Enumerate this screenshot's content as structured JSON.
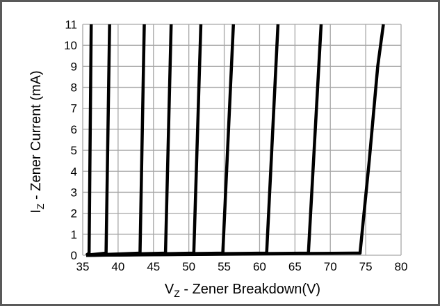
{
  "chart_data": {
    "type": "line",
    "xlabel": {
      "main": "V",
      "sub": "Z",
      "rest": " - Zener Breakdown(V)"
    },
    "ylabel": {
      "main": "I",
      "sub": "Z",
      "rest": " - Zener Current (mA)"
    },
    "xlim": [
      35,
      80
    ],
    "ylim": [
      0,
      11
    ],
    "xticks": [
      35,
      40,
      45,
      50,
      55,
      60,
      65,
      70,
      75,
      80
    ],
    "yticks": [
      0,
      1,
      2,
      3,
      4,
      5,
      6,
      7,
      8,
      9,
      10,
      11
    ],
    "grid": true,
    "legend": "none",
    "colors": {
      "line": "#000000",
      "grid": "#a6a6a6",
      "frame": "#595959"
    },
    "series": [
      {
        "x": [
          35.5,
          35.9,
          36.2
        ],
        "y": [
          0,
          0.1,
          11
        ]
      },
      {
        "x": [
          35.5,
          38.3,
          38.8
        ],
        "y": [
          0,
          0.1,
          11
        ]
      },
      {
        "x": [
          35.5,
          43.1,
          43.7
        ],
        "y": [
          0,
          0.1,
          11
        ]
      },
      {
        "x": [
          35.5,
          46.7,
          47.5
        ],
        "y": [
          0,
          0.1,
          11
        ]
      },
      {
        "x": [
          35.5,
          50.7,
          51.7
        ],
        "y": [
          0,
          0.1,
          11
        ]
      },
      {
        "x": [
          35.5,
          54.8,
          56.3
        ],
        "y": [
          0,
          0.1,
          11
        ]
      },
      {
        "x": [
          35.5,
          61.0,
          62.6
        ],
        "y": [
          0,
          0.1,
          11
        ]
      },
      {
        "x": [
          35.5,
          66.9,
          68.7
        ],
        "y": [
          0,
          0.1,
          11
        ]
      },
      {
        "x": [
          35.5,
          74.2,
          75.5,
          76.7,
          77.5
        ],
        "y": [
          0,
          0.1,
          4.5,
          9,
          11
        ]
      }
    ]
  }
}
